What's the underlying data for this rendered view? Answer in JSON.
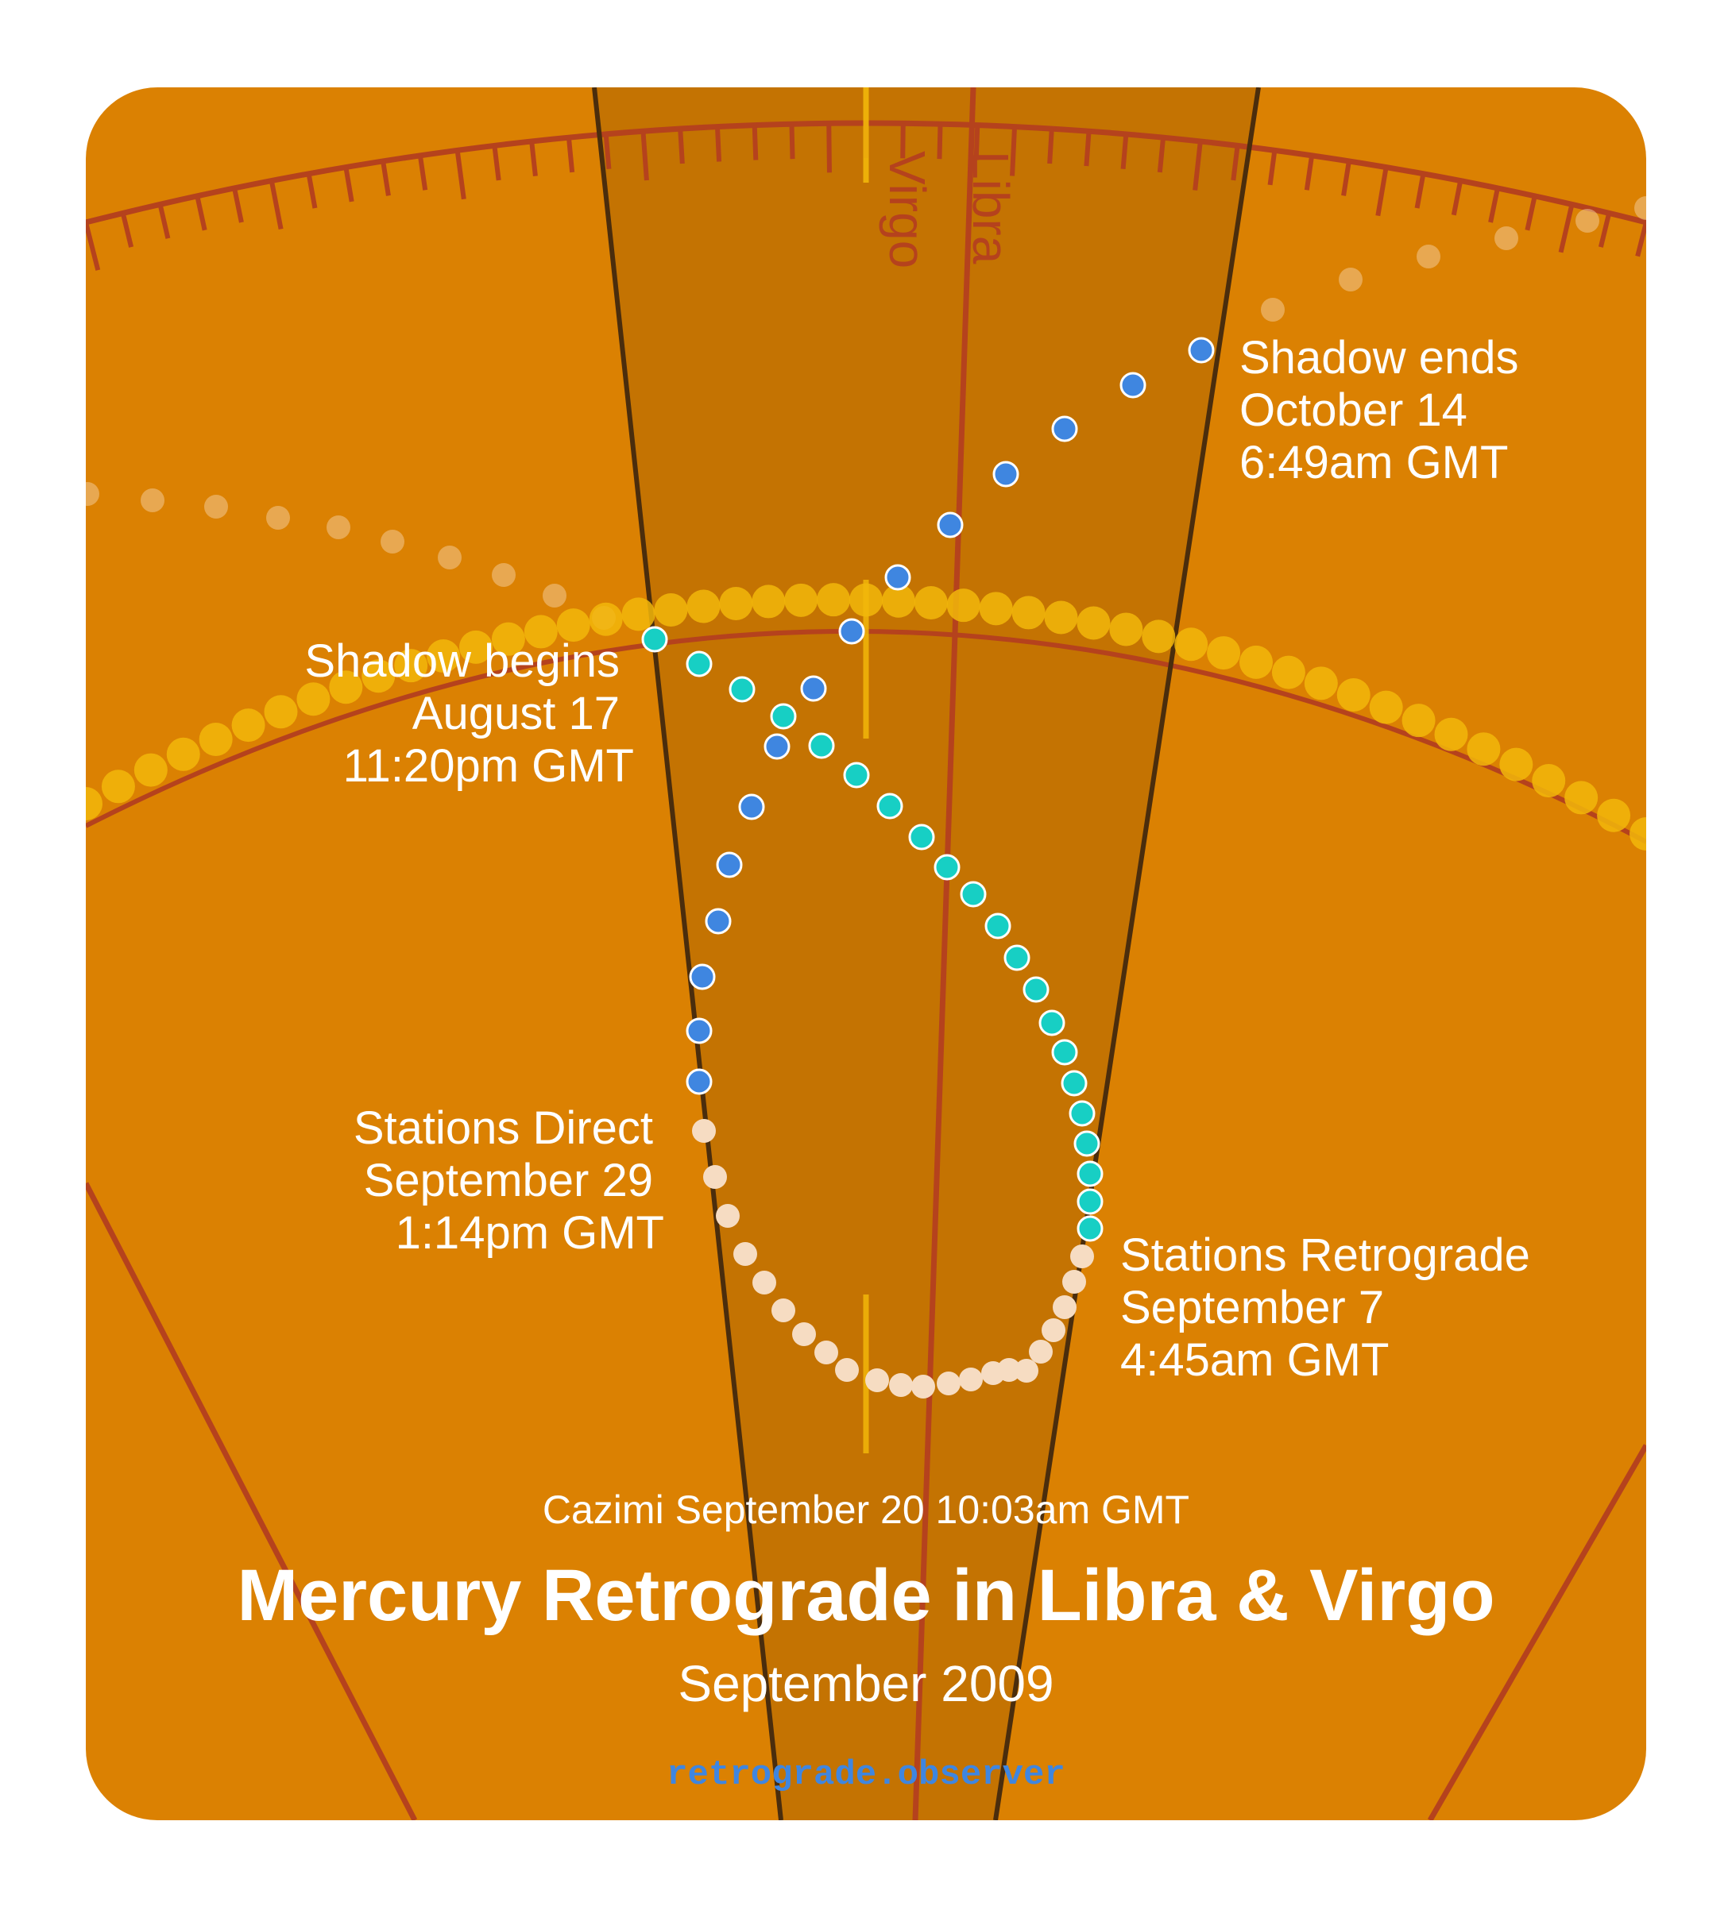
{
  "title": "Mercury Retrograde in Libra & Virgo",
  "subtitle": "September 2009",
  "cazimi": "Cazimi September 20 10:03am GMT",
  "site": "retrograde.observer",
  "signs": {
    "left": "Virgo",
    "right": "Libra"
  },
  "events": {
    "shadow_begins": {
      "line1": "Shadow begins",
      "line2": "August 17",
      "line3": "11:20pm GMT"
    },
    "shadow_ends": {
      "line1": "Shadow ends",
      "line2": "October 14",
      "line3": "6:49am GMT"
    },
    "stations_retrograde": {
      "line1": "Stations Retrograde",
      "line2": "September 7",
      "line3": "4:45am GMT"
    },
    "stations_direct": {
      "line1": "Stations Direct",
      "line2": "September 29",
      "line3": "1:14pm GMT"
    }
  },
  "colors": {
    "background": "#db8102",
    "shadow_band": "#c47302",
    "zodiac_lines": "#b5421d",
    "band_edge": "#4a2d0d",
    "sun": "#f2b70a",
    "pre_shadow": "#17cfc4",
    "retrograde": "#f6dcc2",
    "post_shadow": "#3f86e0"
  }
}
